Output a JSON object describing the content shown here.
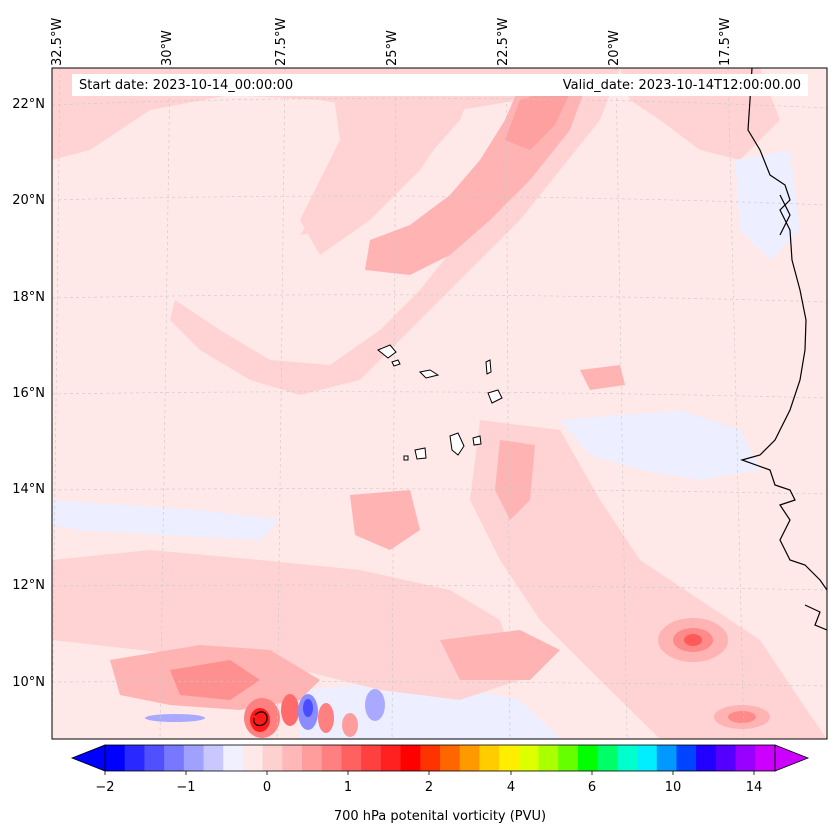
{
  "header": {
    "start_date": "Start date: 2023-10-14_00:00:00",
    "valid_date": "Valid_date: 2023-10-14T12:00:00.00"
  },
  "longitude_labels": [
    "32.5°W",
    "30°W",
    "27.5°W",
    "25°W",
    "22.5°W",
    "20°W",
    "17.5°W"
  ],
  "latitude_labels": [
    "22°N",
    "20°N",
    "18°N",
    "16°N",
    "14°N",
    "12°N",
    "10°N"
  ],
  "colorbar": {
    "label": "700 hPa potenital vorticity (PVU)",
    "ticks": [
      "−2",
      "−1",
      "0",
      "1",
      "2",
      "4",
      "6",
      "10",
      "14"
    ],
    "colors": [
      "#0000ff",
      "#2828ff",
      "#5050ff",
      "#7878ff",
      "#a0a0ff",
      "#c8c8ff",
      "#f0f0ff",
      "#ffe8e8",
      "#ffd0d0",
      "#ffb8b8",
      "#ff9c9c",
      "#ff8080",
      "#ff6060",
      "#ff4040",
      "#ff2020",
      "#ff0000",
      "#ff3300",
      "#ff6600",
      "#ff9900",
      "#ffcc00",
      "#ffee00",
      "#ddff00",
      "#aaff00",
      "#66ff00",
      "#00ff00",
      "#00ff66",
      "#00ffcc",
      "#00eeff",
      "#0099ff",
      "#0044ff",
      "#2200ff",
      "#5500ff",
      "#9900ff",
      "#cc00ff"
    ]
  },
  "palette": {
    "background_pv": "#ffe8e8",
    "light_pink": "#ffd3d3",
    "mid_pink": "#ffb3b3",
    "strong_red": "#ff7a7a",
    "neg_blue": "#edeeff",
    "deep_blue": "#a9aaff"
  }
}
